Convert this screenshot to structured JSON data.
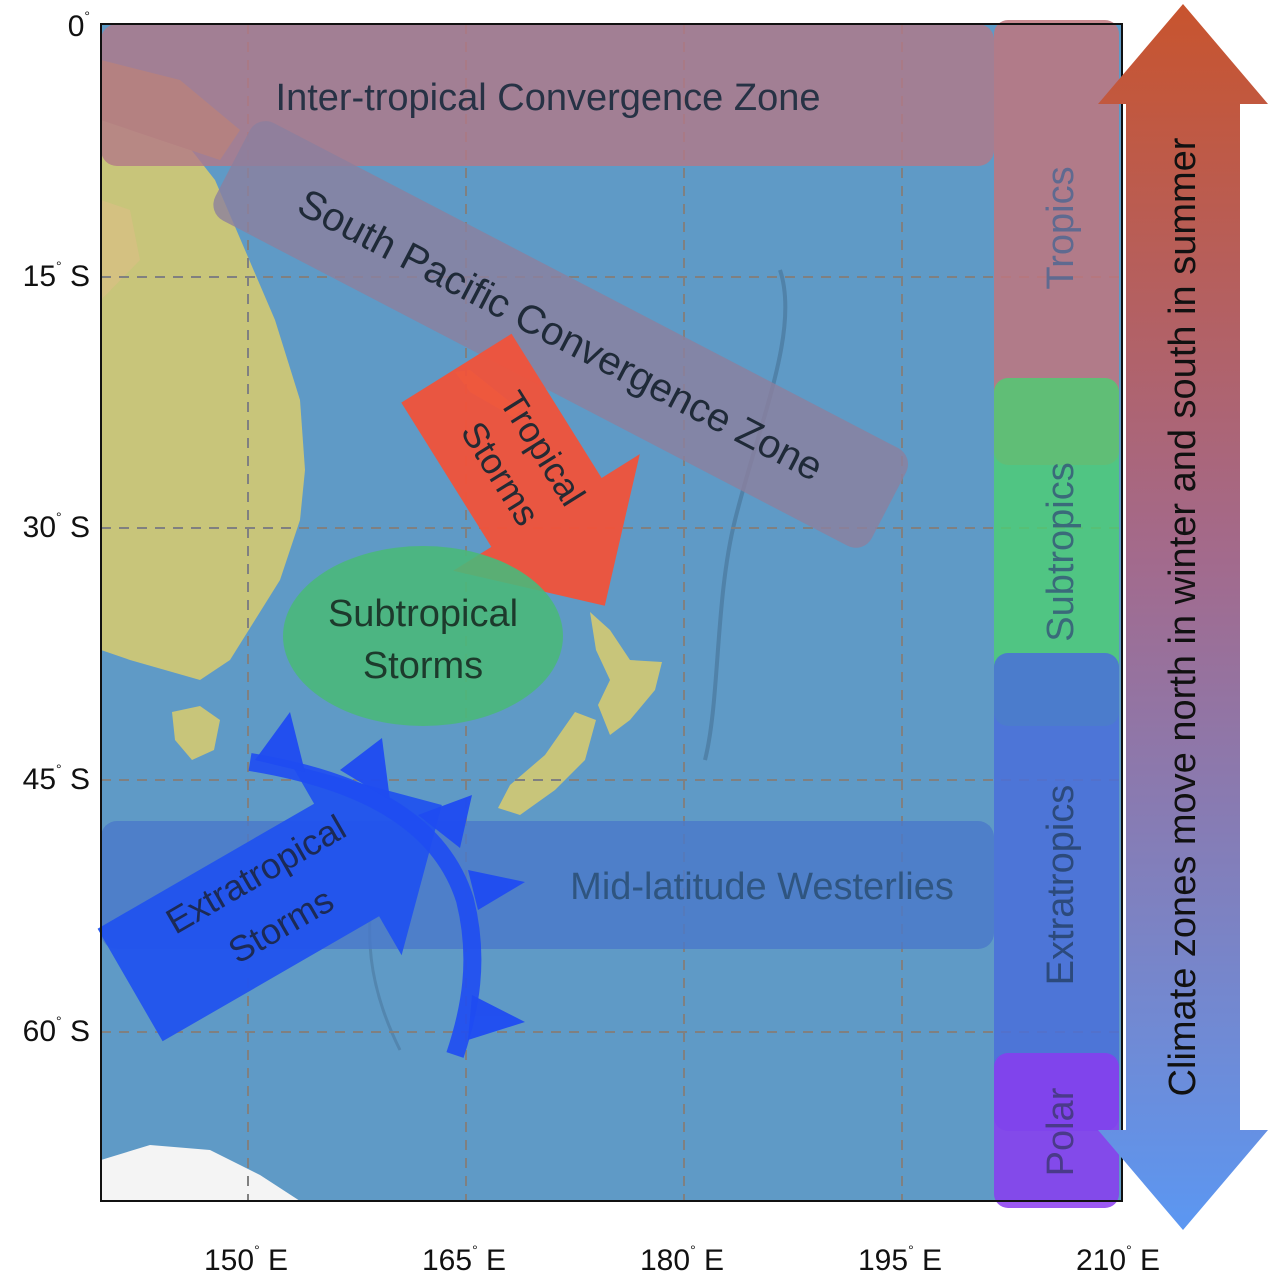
{
  "map": {
    "latitude_ticks": [
      "0",
      "15",
      "30",
      "45",
      "60"
    ],
    "latitude_suffixes": [
      "",
      "S",
      "S",
      "S",
      "S"
    ],
    "longitude_ticks": [
      "150",
      "165",
      "180",
      "195",
      "210"
    ],
    "longitude_suffix": "E",
    "degree_symbol": "°",
    "grid": "dashed"
  },
  "regions": {
    "itcz": "Inter-tropical Convergence Zone",
    "spcz": "South Pacific Convergence Zone",
    "westerlies": "Mid-latitude Westerlies"
  },
  "storms": {
    "tropical": [
      "Tropical",
      "Storms"
    ],
    "subtropical": [
      "Subtropical",
      "Storms"
    ],
    "extratropical": [
      "Extratropical",
      "Storms"
    ]
  },
  "zones": {
    "tropics": "Tropics",
    "subtropics": "Subtropics",
    "extratropics": "Extratropics",
    "polar": "Polar"
  },
  "arrow_label": "Climate zones move north in winter and south in summer",
  "colors": {
    "ocean": "#5f9ac6",
    "land": "#c8c57a",
    "tropics_band": "#c0767e",
    "subtropics_band": "#4ccf72",
    "extratropics_band": "#4a6fd9",
    "polar_band": "#8a3cf0",
    "tropical_storm": "#f0523a",
    "subtropical_storm": "#4ab87a",
    "extratropical_storm": "#2153ee",
    "arrow_top": "#c8542e",
    "arrow_bottom": "#5b97f2"
  }
}
